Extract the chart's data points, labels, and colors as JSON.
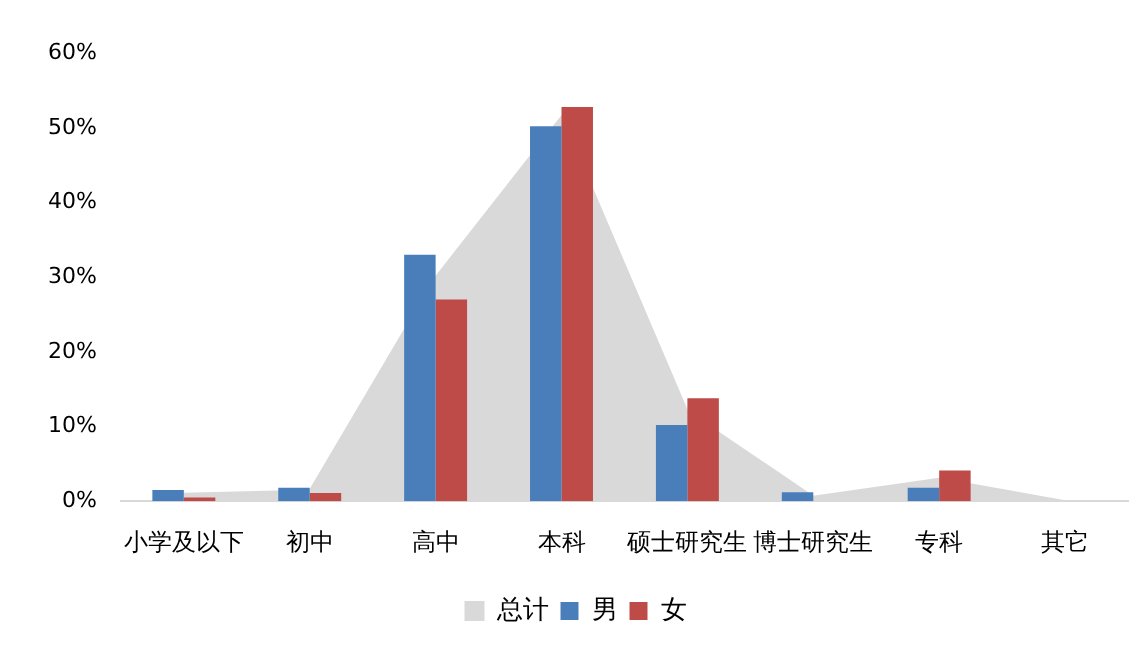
{
  "chart_data": {
    "type": "bar",
    "categories": [
      "小学及以下",
      "初中",
      "高中",
      "本科",
      "硕士研究生",
      "博士研究生",
      "专科",
      "其它"
    ],
    "series": [
      {
        "name": "总计",
        "type": "area",
        "color": "#d9d9d9",
        "values": [
          1.0,
          1.4,
          30,
          51.5,
          12,
          0.6,
          3,
          0
        ]
      },
      {
        "name": "男",
        "color": "#4a7ebb",
        "values": [
          1.5,
          1.8,
          33,
          50.2,
          10.2,
          1.2,
          1.8,
          0
        ]
      },
      {
        "name": "女",
        "color": "#be4b48",
        "values": [
          0.5,
          1.1,
          27,
          52.8,
          13.8,
          0,
          4.1,
          0
        ]
      }
    ],
    "ylim": [
      0,
      60
    ],
    "yticks": [
      {
        "value": 0,
        "label": "0%"
      },
      {
        "value": 10,
        "label": "10%"
      },
      {
        "value": 20,
        "label": "20%"
      },
      {
        "value": 30,
        "label": "30%"
      },
      {
        "value": 40,
        "label": "40%"
      },
      {
        "value": 50,
        "label": "50%"
      },
      {
        "value": 60,
        "label": "60%"
      }
    ],
    "grid": false,
    "legend": "bottom"
  }
}
